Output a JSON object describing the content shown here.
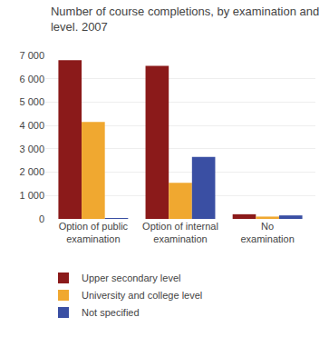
{
  "chart_data": {
    "type": "bar",
    "title": "Number of course completions, by examination and\nlevel. 2007",
    "categories": [
      "Option of public\nexamination",
      "Option of internal\nexamination",
      "No\nexamination"
    ],
    "series": [
      {
        "name": "Upper secondary level",
        "color": "#8B1A1A",
        "values": [
          6800,
          6550,
          200
        ]
      },
      {
        "name": "University and college level",
        "color": "#F0A830",
        "values": [
          4150,
          1550,
          100
        ]
      },
      {
        "name": "Not specified",
        "color": "#3A4FA3",
        "values": [
          20,
          2650,
          150
        ]
      }
    ],
    "ylim": [
      0,
      7000
    ],
    "yticks": [
      0,
      {
        "value": 1000,
        "label": "1 000"
      },
      {
        "value": 2000,
        "label": "2 000"
      },
      {
        "value": 3000,
        "label": "3 000"
      },
      {
        "value": 4000,
        "label": "4 000"
      },
      {
        "value": 5000,
        "label": "5 000"
      },
      {
        "value": 6000,
        "label": "6 000"
      },
      {
        "value": 7000,
        "label": "7 000"
      }
    ],
    "grid": true,
    "legend": "bottom"
  }
}
